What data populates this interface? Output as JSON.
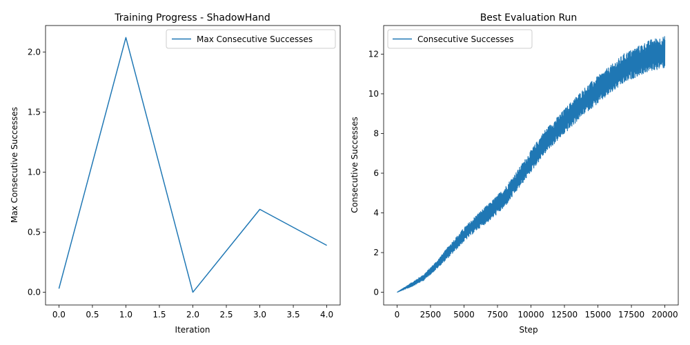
{
  "colors": {
    "series": "#1f77b4",
    "axes": "#000000",
    "legend_border": "#cccccc"
  },
  "chart_data": [
    {
      "type": "line",
      "title": "Training Progress - ShadowHand",
      "xlabel": "Iteration",
      "ylabel": "Max Consecutive Successes",
      "xlim": [
        -0.2,
        4.2
      ],
      "ylim": [
        -0.106,
        2.22
      ],
      "xticks": [
        0.0,
        0.5,
        1.0,
        1.5,
        2.0,
        2.5,
        3.0,
        3.5,
        4.0
      ],
      "xtick_labels": [
        "0.0",
        "0.5",
        "1.0",
        "1.5",
        "2.0",
        "2.5",
        "3.0",
        "3.5",
        "4.0"
      ],
      "yticks": [
        0.0,
        0.5,
        1.0,
        1.5,
        2.0
      ],
      "ytick_labels": [
        "0.0",
        "0.5",
        "1.0",
        "1.5",
        "2.0"
      ],
      "legend_position": "upper right",
      "series": [
        {
          "name": "Max Consecutive Successes",
          "x": [
            0,
            1,
            2,
            3,
            4
          ],
          "y": [
            0.03,
            2.12,
            0.0,
            0.69,
            0.39
          ]
        }
      ]
    },
    {
      "type": "line",
      "title": "Best Evaluation Run",
      "xlabel": "Step",
      "ylabel": "Consecutive Successes",
      "xlim": [
        -1000,
        21000
      ],
      "ylim": [
        -0.64,
        13.44
      ],
      "xticks": [
        0,
        2500,
        5000,
        7500,
        10000,
        12500,
        15000,
        17500,
        20000
      ],
      "xtick_labels": [
        "0",
        "2500",
        "5000",
        "7500",
        "10000",
        "12500",
        "15000",
        "17500",
        "20000"
      ],
      "yticks": [
        0,
        2,
        4,
        6,
        8,
        10,
        12
      ],
      "ytick_labels": [
        "0",
        "2",
        "4",
        "6",
        "8",
        "10",
        "12"
      ],
      "legend_position": "upper left",
      "series": [
        {
          "name": "Consecutive Successes",
          "x": [
            0,
            1000,
            2000,
            3000,
            4000,
            5000,
            6000,
            7000,
            8000,
            9000,
            10000,
            11000,
            12000,
            13000,
            14000,
            15000,
            16000,
            17000,
            18000,
            19000,
            20000
          ],
          "y": [
            0.0,
            0.35,
            0.75,
            1.4,
            2.15,
            2.9,
            3.55,
            4.1,
            4.75,
            5.65,
            6.6,
            7.55,
            8.25,
            8.95,
            9.65,
            10.2,
            10.75,
            11.3,
            11.65,
            11.95,
            12.1
          ],
          "band": [
            0.0,
            0.1,
            0.15,
            0.2,
            0.3,
            0.35,
            0.4,
            0.45,
            0.5,
            0.5,
            0.55,
            0.6,
            0.6,
            0.65,
            0.65,
            0.7,
            0.7,
            0.75,
            0.75,
            0.8,
            0.8
          ]
        }
      ]
    }
  ]
}
